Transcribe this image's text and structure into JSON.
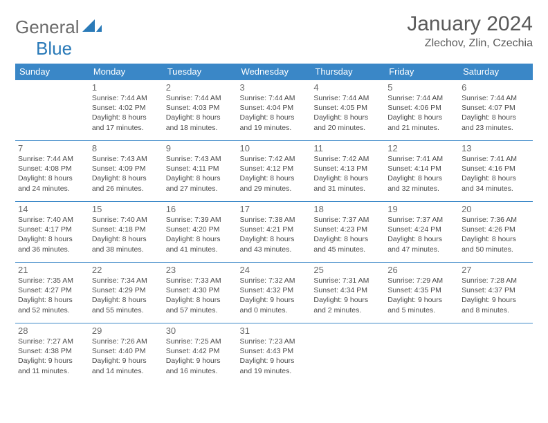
{
  "brand": {
    "word1": "General",
    "word2": "Blue"
  },
  "title": "January 2024",
  "location": "Zlechov, Zlin, Czechia",
  "colors": {
    "header_bg": "#3a87c7",
    "header_text": "#ffffff",
    "border": "#3a87c7",
    "text": "#4a4a4a",
    "daynum": "#6a6a6a",
    "brand_gray": "#6b6b6b",
    "brand_blue": "#2a7ab8",
    "page_bg": "#ffffff"
  },
  "typography": {
    "title_fontsize": 30,
    "location_fontsize": 16,
    "header_fontsize": 13,
    "daynum_fontsize": 13,
    "info_fontsize": 10.5
  },
  "weekdays": [
    "Sunday",
    "Monday",
    "Tuesday",
    "Wednesday",
    "Thursday",
    "Friday",
    "Saturday"
  ],
  "weeks": [
    [
      null,
      {
        "d": "1",
        "sr": "7:44 AM",
        "ss": "4:02 PM",
        "dl": "8 hours and 17 minutes."
      },
      {
        "d": "2",
        "sr": "7:44 AM",
        "ss": "4:03 PM",
        "dl": "8 hours and 18 minutes."
      },
      {
        "d": "3",
        "sr": "7:44 AM",
        "ss": "4:04 PM",
        "dl": "8 hours and 19 minutes."
      },
      {
        "d": "4",
        "sr": "7:44 AM",
        "ss": "4:05 PM",
        "dl": "8 hours and 20 minutes."
      },
      {
        "d": "5",
        "sr": "7:44 AM",
        "ss": "4:06 PM",
        "dl": "8 hours and 21 minutes."
      },
      {
        "d": "6",
        "sr": "7:44 AM",
        "ss": "4:07 PM",
        "dl": "8 hours and 23 minutes."
      }
    ],
    [
      {
        "d": "7",
        "sr": "7:44 AM",
        "ss": "4:08 PM",
        "dl": "8 hours and 24 minutes."
      },
      {
        "d": "8",
        "sr": "7:43 AM",
        "ss": "4:09 PM",
        "dl": "8 hours and 26 minutes."
      },
      {
        "d": "9",
        "sr": "7:43 AM",
        "ss": "4:11 PM",
        "dl": "8 hours and 27 minutes."
      },
      {
        "d": "10",
        "sr": "7:42 AM",
        "ss": "4:12 PM",
        "dl": "8 hours and 29 minutes."
      },
      {
        "d": "11",
        "sr": "7:42 AM",
        "ss": "4:13 PM",
        "dl": "8 hours and 31 minutes."
      },
      {
        "d": "12",
        "sr": "7:41 AM",
        "ss": "4:14 PM",
        "dl": "8 hours and 32 minutes."
      },
      {
        "d": "13",
        "sr": "7:41 AM",
        "ss": "4:16 PM",
        "dl": "8 hours and 34 minutes."
      }
    ],
    [
      {
        "d": "14",
        "sr": "7:40 AM",
        "ss": "4:17 PM",
        "dl": "8 hours and 36 minutes."
      },
      {
        "d": "15",
        "sr": "7:40 AM",
        "ss": "4:18 PM",
        "dl": "8 hours and 38 minutes."
      },
      {
        "d": "16",
        "sr": "7:39 AM",
        "ss": "4:20 PM",
        "dl": "8 hours and 41 minutes."
      },
      {
        "d": "17",
        "sr": "7:38 AM",
        "ss": "4:21 PM",
        "dl": "8 hours and 43 minutes."
      },
      {
        "d": "18",
        "sr": "7:37 AM",
        "ss": "4:23 PM",
        "dl": "8 hours and 45 minutes."
      },
      {
        "d": "19",
        "sr": "7:37 AM",
        "ss": "4:24 PM",
        "dl": "8 hours and 47 minutes."
      },
      {
        "d": "20",
        "sr": "7:36 AM",
        "ss": "4:26 PM",
        "dl": "8 hours and 50 minutes."
      }
    ],
    [
      {
        "d": "21",
        "sr": "7:35 AM",
        "ss": "4:27 PM",
        "dl": "8 hours and 52 minutes."
      },
      {
        "d": "22",
        "sr": "7:34 AM",
        "ss": "4:29 PM",
        "dl": "8 hours and 55 minutes."
      },
      {
        "d": "23",
        "sr": "7:33 AM",
        "ss": "4:30 PM",
        "dl": "8 hours and 57 minutes."
      },
      {
        "d": "24",
        "sr": "7:32 AM",
        "ss": "4:32 PM",
        "dl": "9 hours and 0 minutes."
      },
      {
        "d": "25",
        "sr": "7:31 AM",
        "ss": "4:34 PM",
        "dl": "9 hours and 2 minutes."
      },
      {
        "d": "26",
        "sr": "7:29 AM",
        "ss": "4:35 PM",
        "dl": "9 hours and 5 minutes."
      },
      {
        "d": "27",
        "sr": "7:28 AM",
        "ss": "4:37 PM",
        "dl": "9 hours and 8 minutes."
      }
    ],
    [
      {
        "d": "28",
        "sr": "7:27 AM",
        "ss": "4:38 PM",
        "dl": "9 hours and 11 minutes."
      },
      {
        "d": "29",
        "sr": "7:26 AM",
        "ss": "4:40 PM",
        "dl": "9 hours and 14 minutes."
      },
      {
        "d": "30",
        "sr": "7:25 AM",
        "ss": "4:42 PM",
        "dl": "9 hours and 16 minutes."
      },
      {
        "d": "31",
        "sr": "7:23 AM",
        "ss": "4:43 PM",
        "dl": "9 hours and 19 minutes."
      },
      null,
      null,
      null
    ]
  ]
}
